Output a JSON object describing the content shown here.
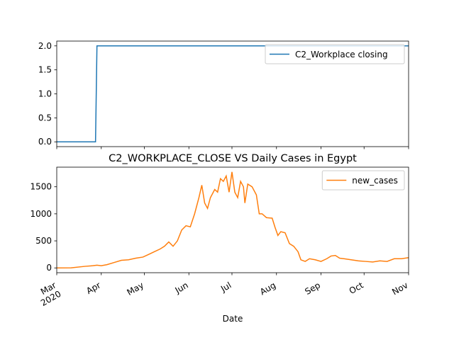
{
  "chart_data": [
    {
      "type": "line",
      "xlabel": null,
      "x": [
        0,
        27,
        28,
        245
      ],
      "series": [
        {
          "name": "C2_Workplace closing",
          "color": "#1f77b4",
          "values": [
            0,
            0,
            2,
            2
          ]
        }
      ],
      "xlim": [
        0,
        245
      ],
      "xticks": [
        0,
        31,
        61,
        92,
        122,
        153,
        184,
        214,
        245
      ],
      "ylim": [
        -0.1,
        2.1
      ],
      "yticks": [
        {
          "value": 0,
          "label": "0.0"
        },
        {
          "value": 0.5,
          "label": "0.5"
        },
        {
          "value": 1,
          "label": "1.0"
        },
        {
          "value": 1.5,
          "label": "1.5"
        },
        {
          "value": 2,
          "label": "2.0"
        }
      ],
      "legend": "upper right"
    },
    {
      "type": "line",
      "title": "C2_WORKPLACE_CLOSE VS Daily Cases in Egypt",
      "xlabel": "Date",
      "x": [
        0,
        10,
        20,
        25,
        28,
        31,
        35,
        40,
        45,
        50,
        55,
        60,
        64,
        68,
        72,
        75,
        78,
        81,
        84,
        87,
        90,
        93,
        96,
        99,
        101,
        103,
        105,
        107,
        110,
        112,
        114,
        116,
        118,
        120,
        122,
        124,
        126,
        128,
        130,
        131,
        133,
        136,
        139,
        141,
        143,
        146,
        150,
        152,
        154,
        156,
        159,
        162,
        165,
        168,
        170,
        173,
        176,
        180,
        184,
        188,
        191,
        194,
        197,
        200,
        205,
        210,
        215,
        220,
        225,
        230,
        235,
        240,
        245
      ],
      "series": [
        {
          "name": "new_cases",
          "color": "#ff7f0e",
          "values": [
            0,
            2,
            30,
            40,
            50,
            40,
            60,
            100,
            140,
            150,
            180,
            200,
            250,
            300,
            350,
            400,
            480,
            400,
            500,
            700,
            780,
            760,
            1000,
            1300,
            1530,
            1200,
            1100,
            1300,
            1450,
            1400,
            1650,
            1600,
            1700,
            1400,
            1774,
            1400,
            1300,
            1600,
            1500,
            1200,
            1550,
            1500,
            1350,
            1000,
            1000,
            930,
            920,
            750,
            600,
            670,
            650,
            450,
            400,
            300,
            150,
            120,
            170,
            150,
            120,
            170,
            220,
            230,
            180,
            170,
            150,
            130,
            120,
            110,
            130,
            120,
            170,
            170,
            190
          ]
        }
      ],
      "xlim": [
        0,
        245
      ],
      "xticks": [
        {
          "value": 0,
          "label": "Mar",
          "sublabel": "2020"
        },
        {
          "value": 31,
          "label": "Apr"
        },
        {
          "value": 61,
          "label": "May"
        },
        {
          "value": 92,
          "label": "Jun"
        },
        {
          "value": 122,
          "label": "Jul"
        },
        {
          "value": 153,
          "label": "Aug"
        },
        {
          "value": 184,
          "label": "Sep"
        },
        {
          "value": 214,
          "label": "Oct"
        },
        {
          "value": 245,
          "label": "Nov"
        }
      ],
      "ylim": [
        -88.7,
        1862.7
      ],
      "yticks": [
        0,
        500,
        1000,
        1500
      ],
      "legend": "upper right"
    }
  ]
}
